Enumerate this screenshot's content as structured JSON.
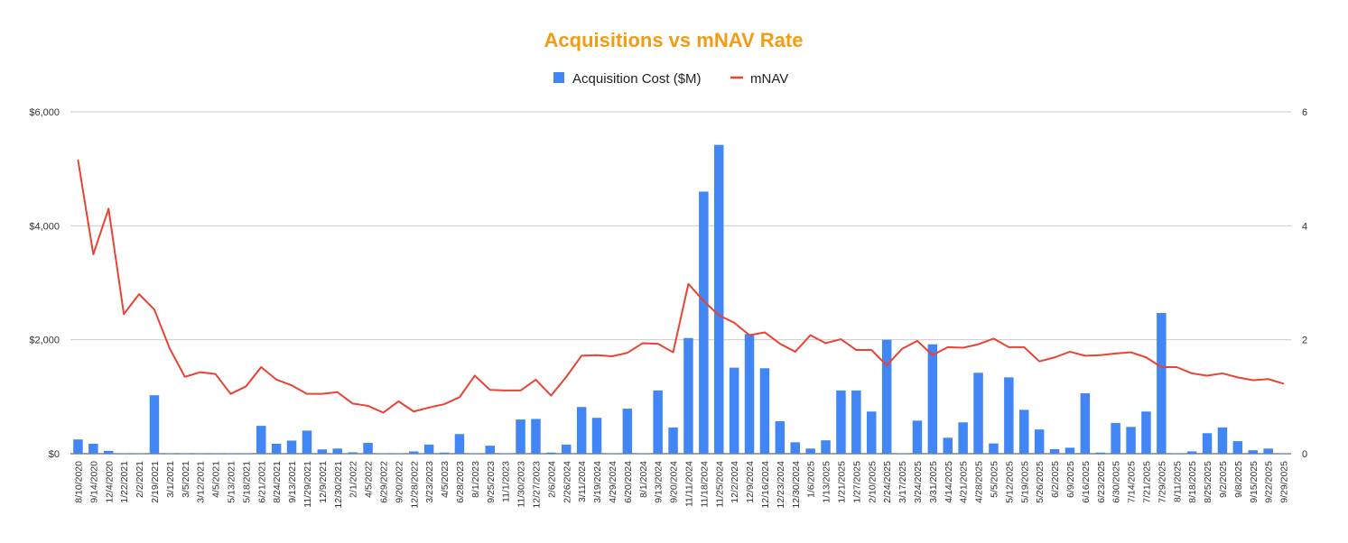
{
  "chart_data": {
    "type": "bar",
    "title": "Acquisitions vs mNAV Rate",
    "title_color": "#f39c12",
    "legend_position": "top-center",
    "gridlines": true,
    "categories": [
      "8/10/2020",
      "9/14/2020",
      "12/4/2020",
      "1/22/2021",
      "2/2/2021",
      "2/19/2021",
      "3/1/2021",
      "3/5/2021",
      "3/12/2021",
      "4/5/2021",
      "5/13/2021",
      "5/18/2021",
      "6/21/2021",
      "8/24/2021",
      "9/13/2021",
      "11/29/2021",
      "12/9/2021",
      "12/30/2021",
      "2/1/2022",
      "4/5/2022",
      "6/29/2022",
      "9/20/2022",
      "12/28/2022",
      "3/23/2023",
      "4/5/2023",
      "6/28/2023",
      "8/1/2023",
      "9/25/2023",
      "11/1/2023",
      "11/30/2023",
      "12/27/2023",
      "2/6/2024",
      "2/26/2024",
      "3/11/2024",
      "3/19/2024",
      "4/29/2024",
      "6/20/2024",
      "8/1/2024",
      "9/13/2024",
      "9/20/2024",
      "11/11/2024",
      "11/18/2024",
      "11/25/2024",
      "12/2/2024",
      "12/9/2024",
      "12/16/2024",
      "12/23/2024",
      "12/30/2024",
      "1/6/2025",
      "1/13/2025",
      "1/21/2025",
      "1/27/2025",
      "2/10/2025",
      "2/24/2025",
      "3/17/2025",
      "3/24/2025",
      "3/31/2025",
      "4/14/2025",
      "4/21/2025",
      "4/28/2025",
      "5/5/2025",
      "5/12/2025",
      "5/19/2025",
      "5/26/2025",
      "6/2/2025",
      "6/9/2025",
      "6/16/2025",
      "6/23/2025",
      "6/30/2025",
      "7/14/2025",
      "7/21/2025",
      "7/29/2025",
      "8/11/2025",
      "8/18/2025",
      "8/25/2025",
      "9/2/2025",
      "9/8/2025",
      "9/15/2025",
      "9/22/2025",
      "9/29/2025"
    ],
    "series": [
      {
        "name": "Acquisition Cost ($M)",
        "type": "bar",
        "axis": "left",
        "color": "#4285f4",
        "values": [
          250,
          175,
          50,
          0,
          0,
          1026,
          0,
          0,
          0,
          0,
          0,
          0,
          489,
          175,
          230,
          405,
          75,
          90,
          25,
          190,
          0,
          0,
          40,
          160,
          20,
          344,
          0,
          140,
          0,
          600,
          610,
          20,
          160,
          820,
          630,
          0,
          790,
          0,
          1110,
          460,
          2030,
          4600,
          5420,
          1510,
          2100,
          1500,
          570,
          200,
          90,
          235,
          1110,
          1110,
          740,
          2000,
          0,
          580,
          1920,
          280,
          550,
          1420,
          180,
          1340,
          770,
          425,
          80,
          105,
          1060,
          20,
          540,
          470,
          740,
          2470,
          0,
          40,
          360,
          460,
          220,
          60,
          90,
          0
        ]
      },
      {
        "name": "mNAV",
        "type": "line",
        "axis": "right",
        "color": "#ea4335",
        "values": [
          5.15,
          3.5,
          4.3,
          2.45,
          2.8,
          2.53,
          1.85,
          1.35,
          1.43,
          1.4,
          1.05,
          1.18,
          1.52,
          1.3,
          1.2,
          1.05,
          1.05,
          1.08,
          0.88,
          0.84,
          0.72,
          0.92,
          0.74,
          0.81,
          0.87,
          0.99,
          1.37,
          1.12,
          1.11,
          1.11,
          1.3,
          1.02,
          1.35,
          1.72,
          1.73,
          1.71,
          1.77,
          1.94,
          1.93,
          1.78,
          2.98,
          2.68,
          2.43,
          2.3,
          2.08,
          2.13,
          1.93,
          1.79,
          2.08,
          1.94,
          2.01,
          1.82,
          1.82,
          1.55,
          1.84,
          1.98,
          1.73,
          1.87,
          1.86,
          1.92,
          2.02,
          1.87,
          1.87,
          1.62,
          1.69,
          1.79,
          1.72,
          1.73,
          1.76,
          1.78,
          1.69,
          1.52,
          1.52,
          1.41,
          1.37,
          1.41,
          1.34,
          1.29,
          1.31,
          1.23
        ]
      }
    ],
    "yaxis_left": {
      "ticks": [
        "$0",
        "$2,000",
        "$4,000",
        "$6,000"
      ],
      "min": 0,
      "max": 6000
    },
    "yaxis_right": {
      "ticks": [
        "0",
        "2",
        "4",
        "6"
      ],
      "min": 0,
      "max": 6
    }
  }
}
